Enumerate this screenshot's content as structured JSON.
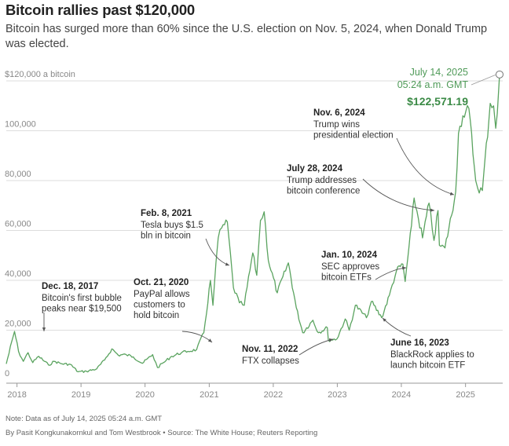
{
  "header": {
    "title": "Bitcoin rallies past $120,000",
    "subtitle": "Bitcoin has surged more than 60% since the U.S. election on Nov. 5, 2024, when Donald Trump was elected."
  },
  "footer": {
    "note": "Note: Data as of July 14, 2025 05:24 a.m. GMT",
    "credits": "By Pasit Kongkunakornkul and Tom Westbrook • Source: The White House; Reuters Reporting"
  },
  "colors": {
    "line": "#5aa35f",
    "grid": "#dddddd",
    "text": "#333333",
    "annotation": "#555555"
  },
  "chart_data": {
    "type": "line",
    "title": "Bitcoin rallies past $120,000",
    "xlabel": "",
    "ylabel": "",
    "x_tick_labels": [
      "2018",
      "2019",
      "2020",
      "2021",
      "2022",
      "2023",
      "2024",
      "2025"
    ],
    "y_tick_labels": [
      "$120,000 a bitcoin",
      "100,000",
      "80,000",
      "60,000",
      "40,000",
      "20,000",
      "0"
    ],
    "y_ticks": [
      120000,
      100000,
      80000,
      60000,
      40000,
      20000,
      0
    ],
    "ylim": [
      0,
      120000
    ],
    "xlim": [
      "2017-11-01",
      "2025-08-01"
    ],
    "grid": true,
    "series": [
      {
        "x": [
          "2017-11-01",
          "2017-12-18",
          "2018-01-10",
          "2018-02-06",
          "2018-03-05",
          "2018-04-01",
          "2018-05-05",
          "2018-06-30",
          "2018-08-01",
          "2018-09-15",
          "2018-11-01",
          "2018-12-15",
          "2019-02-01",
          "2019-04-01",
          "2019-05-15",
          "2019-06-26",
          "2019-08-01",
          "2019-09-15",
          "2019-10-26",
          "2019-12-17",
          "2020-02-13",
          "2020-03-12",
          "2020-04-15",
          "2020-06-01",
          "2020-07-27",
          "2020-09-01",
          "2020-10-21",
          "2020-12-01",
          "2021-01-08",
          "2021-01-22",
          "2021-02-08",
          "2021-02-21",
          "2021-03-13",
          "2021-04-14",
          "2021-05-19",
          "2021-06-22",
          "2021-07-20",
          "2021-09-06",
          "2021-09-29",
          "2021-10-20",
          "2021-11-10",
          "2021-12-04",
          "2022-01-24",
          "2022-03-28",
          "2022-05-12",
          "2022-06-18",
          "2022-08-15",
          "2022-09-15",
          "2022-11-05",
          "2022-11-11",
          "2022-12-30",
          "2023-02-15",
          "2023-03-10",
          "2023-04-14",
          "2023-06-16",
          "2023-07-14",
          "2023-09-11",
          "2023-10-25",
          "2023-12-05",
          "2024-01-10",
          "2024-01-23",
          "2024-02-28",
          "2024-03-14",
          "2024-05-01",
          "2024-06-07",
          "2024-07-05",
          "2024-07-28",
          "2024-08-05",
          "2024-09-06",
          "2024-10-29",
          "2024-11-06",
          "2024-11-22",
          "2024-12-17",
          "2025-01-20",
          "2025-02-28",
          "2025-03-11",
          "2025-04-07",
          "2025-05-22",
          "2025-06-10",
          "2025-06-22",
          "2025-07-01",
          "2025-07-14"
        ],
        "values": [
          6500,
          19500,
          11500,
          7500,
          11000,
          7000,
          9500,
          6000,
          7500,
          6500,
          6300,
          3300,
          3500,
          4500,
          8000,
          12500,
          10000,
          10200,
          9300,
          6700,
          10200,
          5000,
          7000,
          9500,
          11000,
          11500,
          12200,
          19000,
          40000,
          30000,
          47000,
          57000,
          61000,
          63500,
          37000,
          31000,
          30000,
          51000,
          42000,
          64000,
          67500,
          48000,
          35000,
          47000,
          29000,
          19000,
          24000,
          19000,
          21000,
          16000,
          16500,
          24500,
          20000,
          30000,
          25000,
          31500,
          25000,
          34000,
          44000,
          46500,
          39500,
          62000,
          73000,
          57000,
          71000,
          56000,
          68000,
          54000,
          53000,
          72000,
          75500,
          99000,
          106000,
          109000,
          80000,
          77000,
          76000,
          111000,
          110000,
          101000,
          107000,
          122571.19
        ]
      }
    ],
    "annotations": [
      {
        "date": "Dec. 18, 2017",
        "text": [
          "Bitcoin's first bubble",
          "peaks near $19,500"
        ]
      },
      {
        "date": "Oct. 21, 2020",
        "text": [
          "PayPal allows",
          "customers to",
          "hold bitcoin"
        ]
      },
      {
        "date": "Feb. 8, 2021",
        "text": [
          "Tesla buys $1.5",
          "bln in bitcoin"
        ]
      },
      {
        "date": "Nov. 11, 2022",
        "text": [
          "FTX collapses"
        ]
      },
      {
        "date": "June 16, 2023",
        "text": [
          "BlackRock applies to",
          "launch bitcoin ETF"
        ]
      },
      {
        "date": "Jan. 10, 2024",
        "text": [
          "SEC approves",
          "bitcoin ETFs"
        ]
      },
      {
        "date": "July 28, 2024",
        "text": [
          "Trump addresses",
          "bitcoin conference"
        ]
      },
      {
        "date": "Nov. 6, 2024",
        "text": [
          "Trump wins",
          "presidential election"
        ]
      }
    ],
    "end_label": {
      "date_line1": "July 14, 2025",
      "date_line2": "05:24 a.m. GMT",
      "value": "$122,571.19"
    }
  }
}
